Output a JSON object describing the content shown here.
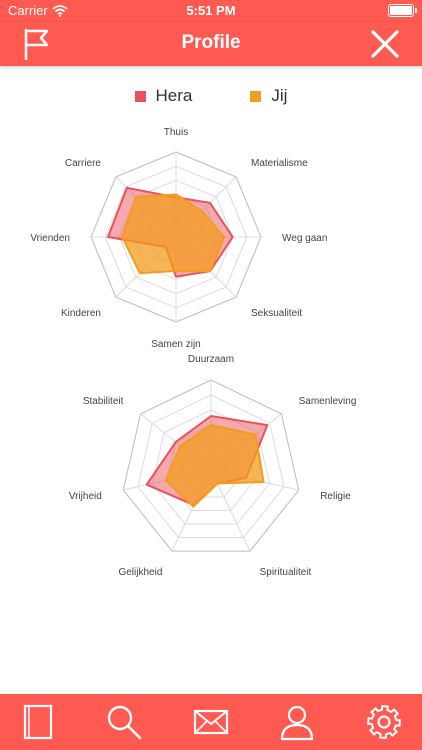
{
  "status": {
    "carrier": "Carrier",
    "time": "5:51 PM"
  },
  "nav": {
    "title": "Profile"
  },
  "colors": {
    "accent": "#ff5a52",
    "hera": "#e8535b",
    "jij": "#f39c1f"
  },
  "legend": [
    {
      "label": "Hera",
      "color": "#e8535b"
    },
    {
      "label": "Jij",
      "color": "#f39c1f"
    }
  ],
  "tabs": [
    "book-icon",
    "search-icon",
    "mail-icon",
    "user-icon",
    "gear-icon"
  ],
  "chart_data": [
    {
      "type": "radar",
      "axes": [
        "Thuis",
        "Materialisme",
        "Weg gaan",
        "Seksualiteit",
        "Samen zijn",
        "Kinderen",
        "Vrienden",
        "Carriere"
      ],
      "range": [
        0,
        6
      ],
      "series": [
        {
          "name": "Hera",
          "values": [
            2.8,
            3.4,
            4.0,
            3.4,
            2.8,
            1.0,
            4.8,
            4.9
          ]
        },
        {
          "name": "Jij",
          "values": [
            3.0,
            2.6,
            3.4,
            3.4,
            2.4,
            3.6,
            3.8,
            4.0
          ]
        }
      ]
    },
    {
      "type": "radar",
      "axes": [
        "Duurzaam",
        "Samenleving",
        "Religie",
        "Spiritualiteit",
        "Gelijkheid",
        "Vrijheid",
        "Stabiliteit"
      ],
      "range": [
        0,
        6
      ],
      "series": [
        {
          "name": "Hera",
          "values": [
            3.6,
            4.8,
            2.4,
            1.0,
            2.6,
            4.4,
            3.0
          ]
        },
        {
          "name": "Jij",
          "values": [
            3.0,
            3.8,
            3.6,
            1.0,
            2.7,
            3.1,
            2.6
          ]
        }
      ]
    }
  ]
}
